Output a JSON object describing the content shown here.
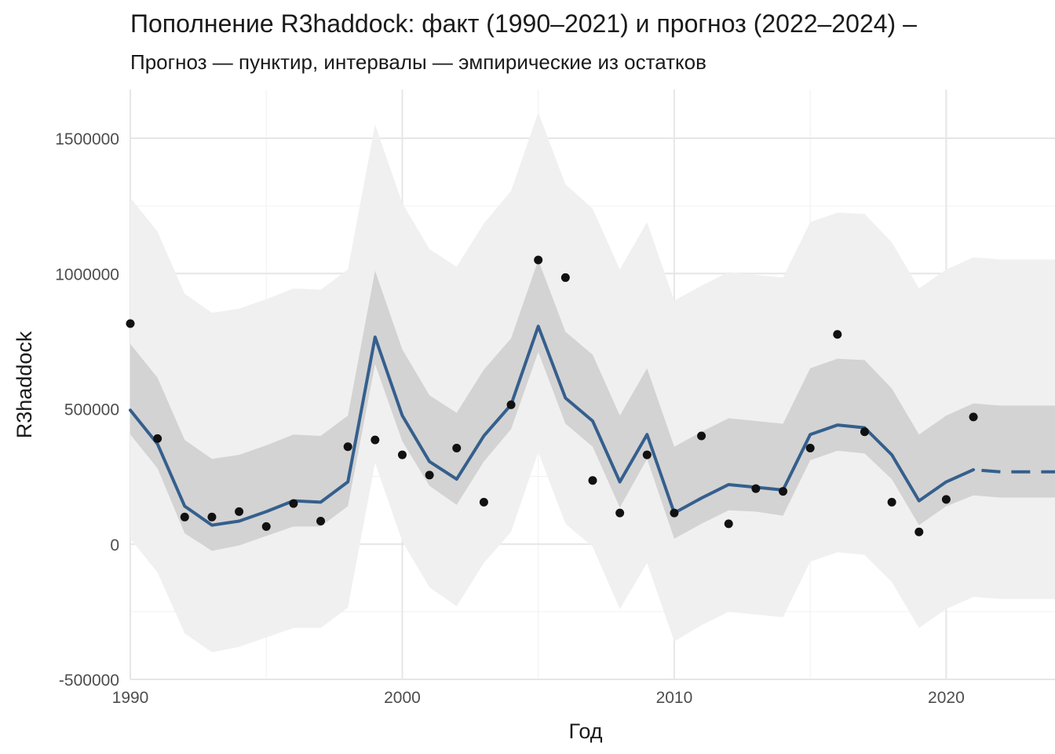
{
  "chart_data": {
    "type": "line",
    "title": "Пополнение R3haddock: факт (1990–2021) и прогноз (2022–2024) –",
    "subtitle": "Прогноз — пунктир, интервалы — эмпирические из остатков",
    "xlabel": "Год",
    "ylabel": "R3haddock",
    "xlim": [
      1990,
      2024
    ],
    "ylim": [
      -500000,
      1680000
    ],
    "x_ticks": [
      1990,
      2000,
      2010,
      2020
    ],
    "y_ticks": [
      -500000,
      0,
      500000,
      1000000,
      1500000
    ],
    "x_tick_labels": [
      "1990",
      "2000",
      "2010",
      "2020"
    ],
    "y_tick_labels": [
      "-500000",
      "0",
      "500000",
      "1000000",
      "1500000"
    ],
    "grid": true,
    "legend": "none",
    "colors": {
      "fit_line": "#355f8d",
      "points": "#111111",
      "inner_band": "#d3d3d3",
      "outer_band": "#f0f0f0",
      "grid": "#e6e6e6"
    },
    "observed": {
      "x": [
        1990,
        1991,
        1992,
        1993,
        1994,
        1995,
        1996,
        1997,
        1998,
        1999,
        2000,
        2001,
        2002,
        2003,
        2004,
        2005,
        2006,
        2007,
        2008,
        2009,
        2010,
        2011,
        2012,
        2013,
        2014,
        2015,
        2016,
        2017,
        2018,
        2019,
        2020,
        2021
      ],
      "y": [
        815000,
        390000,
        100000,
        100000,
        120000,
        65000,
        150000,
        85000,
        360000,
        385000,
        330000,
        255000,
        355000,
        155000,
        515000,
        1050000,
        985000,
        235000,
        115000,
        330000,
        115000,
        400000,
        75000,
        205000,
        195000,
        355000,
        775000,
        415000,
        155000,
        45000,
        165000,
        470000
      ]
    },
    "fitted": {
      "x": [
        1990,
        1991,
        1992,
        1993,
        1994,
        1995,
        1996,
        1997,
        1998,
        1999,
        2000,
        2001,
        2002,
        2003,
        2004,
        2005,
        2006,
        2007,
        2008,
        2009,
        2010,
        2011,
        2012,
        2013,
        2014,
        2015,
        2016,
        2017,
        2018,
        2019,
        2020,
        2021
      ],
      "y": [
        495000,
        370000,
        140000,
        70000,
        85000,
        120000,
        160000,
        155000,
        230000,
        765000,
        475000,
        305000,
        240000,
        400000,
        515000,
        805000,
        540000,
        455000,
        230000,
        405000,
        115000,
        170000,
        220000,
        210000,
        200000,
        405000,
        440000,
        430000,
        330000,
        160000,
        230000,
        275000
      ],
      "inner_lower": [
        405000,
        280000,
        40000,
        -25000,
        -5000,
        30000,
        65000,
        65000,
        140000,
        665000,
        380000,
        215000,
        145000,
        305000,
        425000,
        710000,
        445000,
        360000,
        135000,
        315000,
        20000,
        75000,
        125000,
        120000,
        105000,
        310000,
        345000,
        335000,
        240000,
        70000,
        140000,
        180000
      ],
      "inner_upper": [
        740000,
        615000,
        385000,
        315000,
        330000,
        365000,
        405000,
        400000,
        475000,
        1010000,
        720000,
        550000,
        485000,
        645000,
        760000,
        1050000,
        785000,
        700000,
        475000,
        650000,
        360000,
        415000,
        465000,
        455000,
        445000,
        650000,
        685000,
        680000,
        575000,
        405000,
        475000,
        520000
      ],
      "outer_lower": [
        20000,
        -105000,
        -330000,
        -400000,
        -380000,
        -345000,
        -310000,
        -310000,
        -235000,
        300000,
        10000,
        -160000,
        -230000,
        -70000,
        45000,
        340000,
        75000,
        -10000,
        -240000,
        -70000,
        -360000,
        -300000,
        -250000,
        -260000,
        -270000,
        -65000,
        -30000,
        -40000,
        -140000,
        -310000,
        -240000,
        -195000
      ],
      "outer_upper": [
        1280000,
        1155000,
        925000,
        855000,
        870000,
        905000,
        945000,
        940000,
        1015000,
        1550000,
        1260000,
        1090000,
        1025000,
        1185000,
        1305000,
        1595000,
        1330000,
        1240000,
        1015000,
        1190000,
        900000,
        955000,
        1005000,
        995000,
        985000,
        1190000,
        1225000,
        1220000,
        1115000,
        945000,
        1015000,
        1060000
      ]
    },
    "forecast": {
      "x": [
        2021,
        2022,
        2023,
        2024
      ],
      "y": [
        275000,
        267000,
        267000,
        267000
      ],
      "inner_lower": [
        180000,
        172000,
        172000,
        172000
      ],
      "inner_upper": [
        520000,
        512000,
        512000,
        512000
      ],
      "outer_lower": [
        -195000,
        -203000,
        -203000,
        -203000
      ],
      "outer_upper": [
        1060000,
        1052000,
        1052000,
        1052000
      ]
    }
  }
}
